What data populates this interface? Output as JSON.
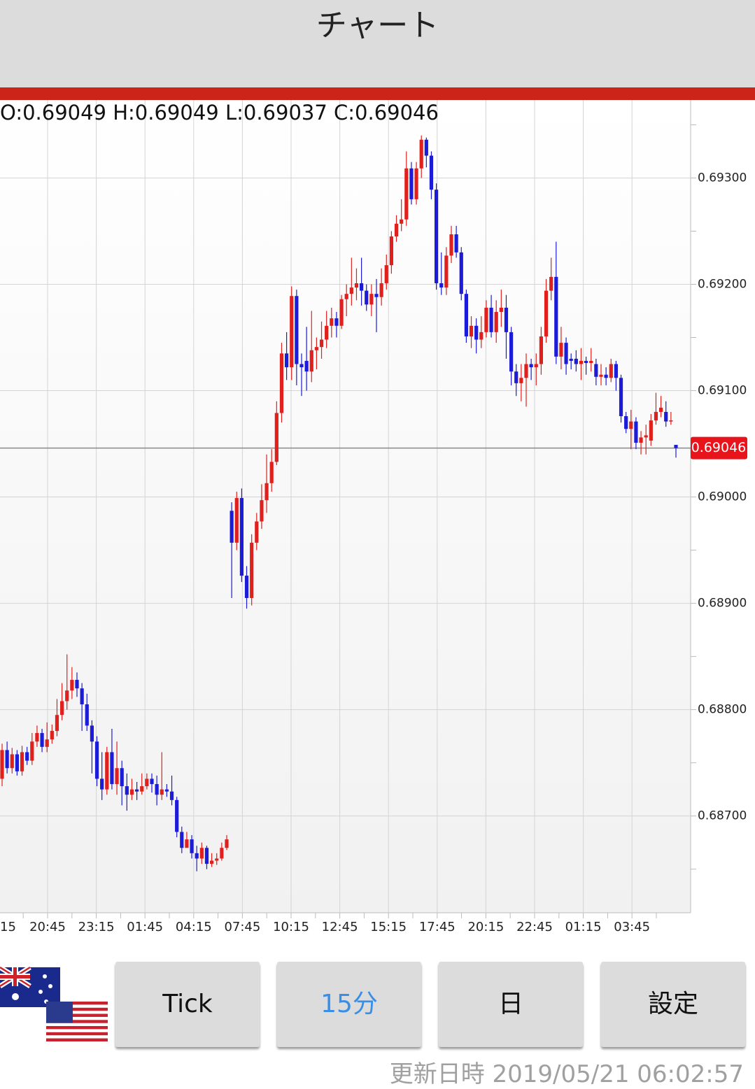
{
  "header": {
    "title": "チャート"
  },
  "chart_data": {
    "type": "candlestick",
    "ohlc_text": "O:0.69049 H:0.69049 L:0.69037 C:0.69046",
    "up_color": "#e0201c",
    "down_color": "#1c1cd8",
    "ylim": [
      0.68609,
      0.69372
    ],
    "yticks": [
      {
        "value": 0.687,
        "label": "0.68700"
      },
      {
        "value": 0.688,
        "label": "0.68800"
      },
      {
        "value": 0.689,
        "label": "0.68900"
      },
      {
        "value": 0.69,
        "label": "0.69000"
      },
      {
        "value": 0.691,
        "label": "0.69100"
      },
      {
        "value": 0.692,
        "label": "0.69200"
      },
      {
        "value": 0.693,
        "label": "0.69300"
      }
    ],
    "y_minor_ticks": [
      0.6865,
      0.6875,
      0.6885,
      0.6895,
      0.6905,
      0.6915,
      0.6925,
      0.6935
    ],
    "grid": true,
    "last_price": {
      "value": 0.69046,
      "label": "0.69046"
    },
    "x_labels": [
      "15",
      "20:45",
      "23:15",
      "01:45",
      "04:15",
      "07:45",
      "10:15",
      "12:45",
      "15:15",
      "17:45",
      "20:15",
      "22:45",
      "01:15",
      "03:45"
    ],
    "open": [
      0.68735,
      0.68762,
      0.68745,
      0.68758,
      0.68742,
      0.6876,
      0.68752,
      0.6877,
      0.68778,
      0.68765,
      0.68772,
      0.6878,
      0.68795,
      0.68808,
      0.68818,
      0.68828,
      0.6882,
      0.68805,
      0.68785,
      0.6877,
      0.68735,
      0.68725,
      0.6876,
      0.6873,
      0.68745,
      0.68728,
      0.6872,
      0.68725,
      0.68723,
      0.68728,
      0.68735,
      0.6873,
      0.6872,
      0.68725,
      0.68723,
      0.68715,
      0.68685,
      0.6867,
      0.68678,
      0.68665,
      0.6866,
      0.6867,
      0.68655,
      0.68658,
      0.6866,
      0.6867,
      0.68987,
      0.68957,
      0.68999,
      0.68926,
      0.68905,
      0.68957,
      0.68977,
      0.68997,
      0.69013,
      0.69033,
      0.69079,
      0.69135,
      0.69122,
      0.69189,
      0.69125,
      0.69128,
      0.69118,
      0.69138,
      0.69141,
      0.69148,
      0.69161,
      0.69168,
      0.69161,
      0.69186,
      0.69191,
      0.69197,
      0.69201,
      0.69194,
      0.69181,
      0.69191,
      0.69188,
      0.69201,
      0.69218,
      0.69245,
      0.69257,
      0.69261,
      0.69309,
      0.6928,
      0.69309,
      0.69336,
      0.69321,
      0.69289,
      0.69201,
      0.69197,
      0.69227,
      0.69247,
      0.6923,
      0.69191,
      0.69151,
      0.69161,
      0.69148,
      0.69155,
      0.69178,
      0.69155,
      0.69174,
      0.69178,
      0.69155,
      0.69118,
      0.69107,
      0.69112,
      0.69125,
      0.69122,
      0.69125,
      0.69151,
      0.69194,
      0.69207,
      0.69132,
      0.69145,
      0.6913,
      0.6913,
      0.69125,
      0.69128,
      0.69126,
      0.69125,
      0.69113,
      0.69115,
      0.69112,
      0.69125,
      0.69112,
      0.69076,
      0.69064,
      0.69071,
      0.69051,
      0.69056,
      0.69053,
      0.69072,
      0.6908,
      0.6908,
      0.69071,
      0.69049
    ],
    "high": [
      0.68768,
      0.6877,
      0.68764,
      0.68762,
      0.68766,
      0.68765,
      0.68778,
      0.68785,
      0.68782,
      0.68788,
      0.68786,
      0.6881,
      0.68825,
      0.68852,
      0.6884,
      0.68835,
      0.68825,
      0.68815,
      0.6879,
      0.68775,
      0.6876,
      0.68765,
      0.68782,
      0.6877,
      0.68752,
      0.6874,
      0.68735,
      0.68732,
      0.6874,
      0.6874,
      0.6874,
      0.68738,
      0.6876,
      0.6873,
      0.68738,
      0.68718,
      0.6869,
      0.68685,
      0.68682,
      0.68672,
      0.68675,
      0.68672,
      0.68665,
      0.68665,
      0.68675,
      0.68682,
      0.68995,
      0.69005,
      0.69008,
      0.68935,
      0.68965,
      0.68985,
      0.69012,
      0.6904,
      0.69045,
      0.6909,
      0.69145,
      0.69155,
      0.69198,
      0.69195,
      0.69135,
      0.6916,
      0.69175,
      0.6915,
      0.69165,
      0.69175,
      0.69178,
      0.69174,
      0.6919,
      0.692,
      0.69225,
      0.69215,
      0.69225,
      0.692,
      0.692,
      0.69205,
      0.69215,
      0.69228,
      0.6925,
      0.69265,
      0.6928,
      0.69325,
      0.69315,
      0.69315,
      0.6934,
      0.69338,
      0.69325,
      0.69295,
      0.6923,
      0.69235,
      0.69255,
      0.69255,
      0.69235,
      0.69195,
      0.6917,
      0.69168,
      0.6917,
      0.69185,
      0.6919,
      0.69185,
      0.69195,
      0.6919,
      0.6916,
      0.69125,
      0.69125,
      0.69135,
      0.6913,
      0.69135,
      0.6916,
      0.69205,
      0.69225,
      0.6924,
      0.6916,
      0.6915,
      0.69135,
      0.69138,
      0.6914,
      0.69132,
      0.6914,
      0.6913,
      0.69125,
      0.69122,
      0.6913,
      0.69128,
      0.69115,
      0.6908,
      0.69082,
      0.69075,
      0.69062,
      0.69068,
      0.69078,
      0.69098,
      0.69095,
      0.6909,
      0.6908,
      0.69049
    ],
    "low": [
      0.68728,
      0.6874,
      0.6874,
      0.68738,
      0.68738,
      0.68748,
      0.68748,
      0.68765,
      0.6876,
      0.6876,
      0.68768,
      0.68775,
      0.6879,
      0.688,
      0.6881,
      0.68812,
      0.6878,
      0.6878,
      0.6874,
      0.68728,
      0.68715,
      0.6872,
      0.68725,
      0.6872,
      0.6871,
      0.68705,
      0.68715,
      0.68715,
      0.6872,
      0.68725,
      0.68722,
      0.6871,
      0.68715,
      0.68718,
      0.6871,
      0.6868,
      0.68665,
      0.68672,
      0.6866,
      0.68648,
      0.68655,
      0.6865,
      0.68652,
      0.68654,
      0.68658,
      0.68668,
      0.68905,
      0.6895,
      0.6892,
      0.68895,
      0.68898,
      0.6895,
      0.6897,
      0.68985,
      0.69005,
      0.6903,
      0.6907,
      0.6911,
      0.6911,
      0.69105,
      0.69095,
      0.691,
      0.69108,
      0.6912,
      0.6913,
      0.6914,
      0.6915,
      0.6915,
      0.69158,
      0.6917,
      0.6918,
      0.69185,
      0.6918,
      0.69175,
      0.6917,
      0.69155,
      0.6918,
      0.69195,
      0.6921,
      0.6924,
      0.6925,
      0.69255,
      0.69275,
      0.69275,
      0.693,
      0.6931,
      0.6928,
      0.69195,
      0.6919,
      0.6919,
      0.6922,
      0.69225,
      0.69185,
      0.69145,
      0.6914,
      0.69135,
      0.6914,
      0.6915,
      0.6915,
      0.69145,
      0.6916,
      0.6913,
      0.69105,
      0.69095,
      0.6909,
      0.69085,
      0.6911,
      0.69105,
      0.69115,
      0.69145,
      0.69185,
      0.69125,
      0.6912,
      0.69115,
      0.6912,
      0.69118,
      0.6911,
      0.69115,
      0.69118,
      0.69105,
      0.69105,
      0.69105,
      0.69108,
      0.691,
      0.6907,
      0.6906,
      0.69045,
      0.69045,
      0.6904,
      0.6904,
      0.69048,
      0.69068,
      0.69075,
      0.69066,
      0.69068,
      0.69037
    ],
    "close": [
      0.68762,
      0.68745,
      0.68758,
      0.68742,
      0.6876,
      0.68752,
      0.6877,
      0.68778,
      0.68765,
      0.68772,
      0.6878,
      0.68795,
      0.68808,
      0.68818,
      0.68828,
      0.6882,
      0.68805,
      0.68785,
      0.6877,
      0.68735,
      0.68725,
      0.6876,
      0.6873,
      0.68745,
      0.68728,
      0.6872,
      0.68725,
      0.68723,
      0.68728,
      0.68735,
      0.6873,
      0.6872,
      0.68725,
      0.68723,
      0.68715,
      0.68685,
      0.6867,
      0.68678,
      0.68665,
      0.6866,
      0.6867,
      0.68655,
      0.68658,
      0.6866,
      0.6867,
      0.68678,
      0.68957,
      0.68999,
      0.68926,
      0.68905,
      0.68957,
      0.68977,
      0.68997,
      0.69013,
      0.69033,
      0.69079,
      0.69135,
      0.69122,
      0.69189,
      0.69125,
      0.69122,
      0.69118,
      0.69138,
      0.69141,
      0.69148,
      0.69161,
      0.69168,
      0.69161,
      0.69186,
      0.69191,
      0.69197,
      0.69201,
      0.69194,
      0.69181,
      0.69191,
      0.69188,
      0.69201,
      0.69218,
      0.69245,
      0.69257,
      0.69261,
      0.69309,
      0.6928,
      0.69309,
      0.69336,
      0.69321,
      0.69289,
      0.69201,
      0.69197,
      0.69227,
      0.69247,
      0.6923,
      0.69191,
      0.69151,
      0.69161,
      0.69148,
      0.69155,
      0.69178,
      0.69155,
      0.69174,
      0.69178,
      0.69155,
      0.69118,
      0.69107,
      0.69112,
      0.69125,
      0.69122,
      0.69125,
      0.69151,
      0.69194,
      0.69207,
      0.69132,
      0.69145,
      0.69125,
      0.69128,
      0.69125,
      0.69128,
      0.69126,
      0.69128,
      0.69113,
      0.69115,
      0.69112,
      0.69125,
      0.69112,
      0.69076,
      0.69064,
      0.69071,
      0.69051,
      0.69056,
      0.69058,
      0.69072,
      0.6908,
      0.69084,
      0.69071,
      0.69072,
      0.69046
    ]
  },
  "buttons": [
    "Tick",
    "15分",
    "日",
    "設定"
  ],
  "footer": {
    "updated": "更新日時 2019/05/21 06:02:57"
  }
}
